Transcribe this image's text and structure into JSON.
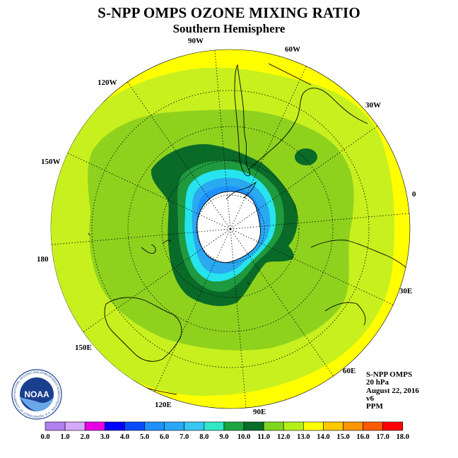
{
  "title": "S-NPP OMPS OZONE MIXING RATIO",
  "subtitle": "Southern Hemisphere",
  "longitude_labels": {
    "lon_90w": "90W",
    "lon_60w": "60W",
    "lon_30w": "30W",
    "lon_0": "0",
    "lon_30e": "30E",
    "lon_60e": "60E",
    "lon_90e": "90E",
    "lon_120e": "120E",
    "lon_150e": "150E",
    "lon_180": "180",
    "lon_150w": "150W",
    "lon_120w": "120W"
  },
  "info": {
    "instrument": "S-NPP OMPS",
    "level": "20 hPa",
    "date": "August 22, 2016",
    "version": "v6",
    "units": "PPM"
  },
  "logo": {
    "text": "NOAA",
    "ring_text": "NATIONAL OCEANIC AND ATMOSPHERIC ADMINISTRATION · U.S. DEPARTMENT OF COMMERCE"
  },
  "colorbar": {
    "labels": [
      "0.0",
      "1.0",
      "2.0",
      "3.0",
      "4.0",
      "5.0",
      "6.0",
      "7.0",
      "8.0",
      "9.0",
      "10.0",
      "11.0",
      "12.0",
      "13.0",
      "14.0",
      "15.0",
      "16.0",
      "17.0",
      "18.0"
    ],
    "colors": [
      "#b07ff0",
      "#d6a8ff",
      "#e600e6",
      "#0000ff",
      "#0a4bff",
      "#1e90ff",
      "#2aa8f5",
      "#38c6f2",
      "#30e8c8",
      "#19a642",
      "#0a6e2a",
      "#7fd61e",
      "#b4f016",
      "#ffff00",
      "#ffc800",
      "#ff9600",
      "#ff5a00",
      "#ff0000",
      "#8b4a2b"
    ]
  },
  "colors": {
    "yellow": "#ffff00",
    "light_green": "#c8f01e",
    "mid_green": "#8ed21e",
    "green": "#1f9a3e",
    "dark_green": "#0a6a28",
    "cyan": "#26e3ee",
    "sky": "#2aa8f0",
    "blue": "#1e90ff"
  }
}
